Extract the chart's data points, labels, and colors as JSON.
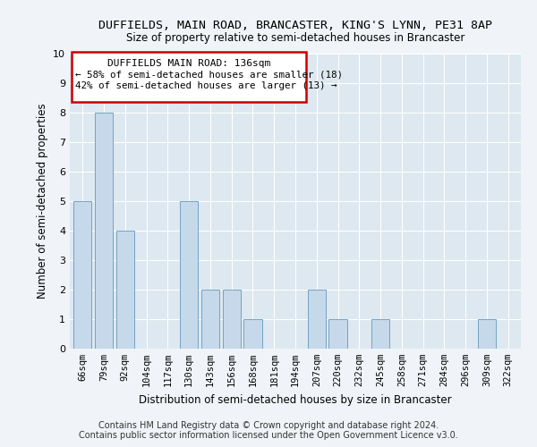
{
  "title": "DUFFIELDS, MAIN ROAD, BRANCASTER, KING'S LYNN, PE31 8AP",
  "subtitle": "Size of property relative to semi-detached houses in Brancaster",
  "xlabel": "Distribution of semi-detached houses by size in Brancaster",
  "ylabel": "Number of semi-detached properties",
  "categories": [
    "66sqm",
    "79sqm",
    "92sqm",
    "104sqm",
    "117sqm",
    "130sqm",
    "143sqm",
    "156sqm",
    "168sqm",
    "181sqm",
    "194sqm",
    "207sqm",
    "220sqm",
    "232sqm",
    "245sqm",
    "258sqm",
    "271sqm",
    "284sqm",
    "296sqm",
    "309sqm",
    "322sqm"
  ],
  "values": [
    5,
    8,
    4,
    0,
    0,
    5,
    2,
    2,
    1,
    0,
    0,
    2,
    1,
    0,
    1,
    0,
    0,
    0,
    0,
    1,
    0
  ],
  "bar_color": "#c6d9ea",
  "bar_edge_color": "#6699bb",
  "annotation_title": "DUFFIELDS MAIN ROAD: 136sqm",
  "annotation_line1": "← 58% of semi-detached houses are smaller (18)",
  "annotation_line2": "42% of semi-detached houses are larger (13) →",
  "annotation_box_edge": "#cc0000",
  "background_color": "#dde8f0",
  "grid_color": "#ffffff",
  "footnote1": "Contains HM Land Registry data © Crown copyright and database right 2024.",
  "footnote2": "Contains public sector information licensed under the Open Government Licence v3.0.",
  "ylim": [
    0,
    10
  ],
  "yticks": [
    0,
    1,
    2,
    3,
    4,
    5,
    6,
    7,
    8,
    9,
    10
  ]
}
